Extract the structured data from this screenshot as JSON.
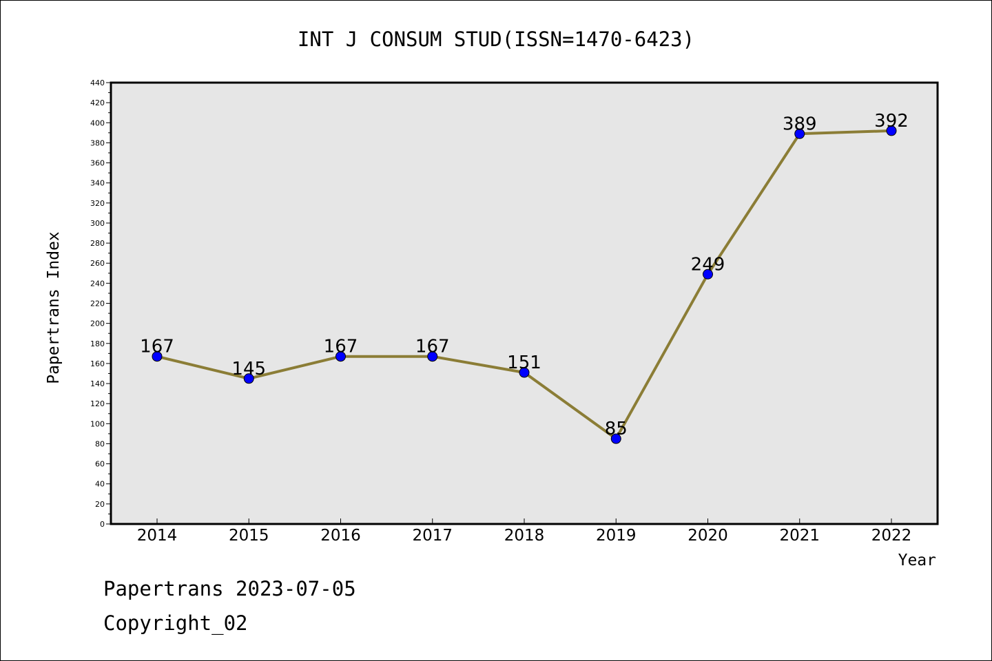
{
  "chart_data": {
    "type": "line",
    "title": "INT J CONSUM STUD(ISSN=1470-6423)",
    "xlabel": "Year",
    "ylabel": "Papertrans Index",
    "x": [
      "2014",
      "2015",
      "2016",
      "2017",
      "2018",
      "2019",
      "2020",
      "2021",
      "2022"
    ],
    "values": [
      167,
      145,
      167,
      167,
      151,
      85,
      249,
      389,
      392
    ],
    "data_labels": [
      "167",
      "145",
      "167",
      "167",
      "151",
      "85",
      "249",
      "389",
      "392"
    ],
    "ylim": [
      0,
      440
    ],
    "yticks": [
      "0",
      "20",
      "40",
      "60",
      "80",
      "100",
      "120",
      "140",
      "160",
      "180",
      "200",
      "220",
      "240",
      "260",
      "280",
      "300",
      "320",
      "340",
      "360",
      "380",
      "400",
      "420",
      "440"
    ],
    "grid": false,
    "legend": "none",
    "colors": {
      "line": "#8b7d36",
      "marker": "#0000ff",
      "plot_background": "#e6e6e6"
    }
  },
  "footer": {
    "line1": "Papertrans 2023-07-05",
    "line2": "Copyright_02"
  }
}
